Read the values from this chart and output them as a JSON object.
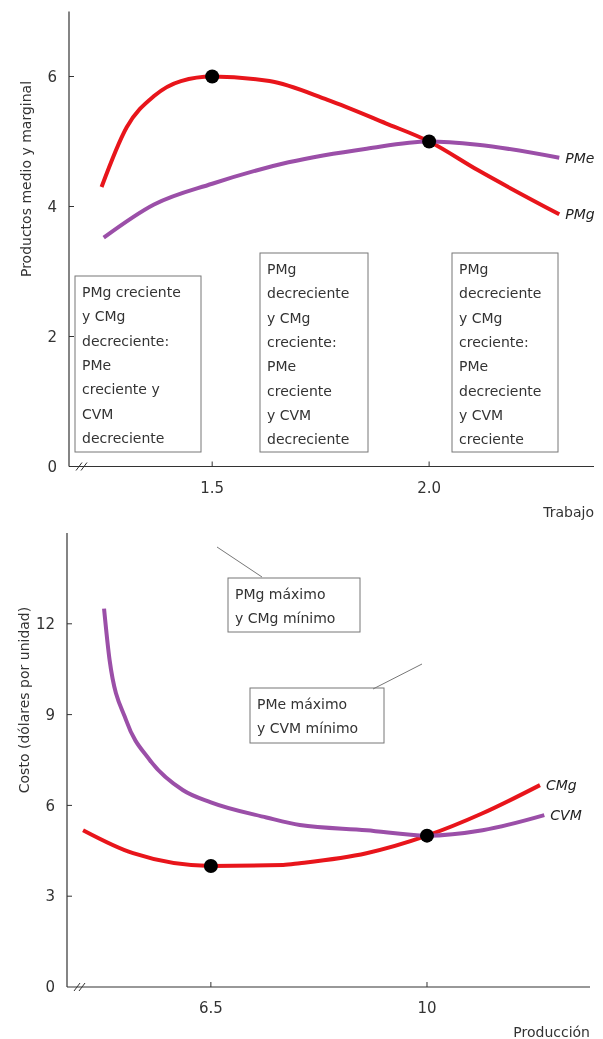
{
  "chart_data": [
    {
      "type": "line",
      "ylabel": "Productos medio y marginal",
      "xlabel": "Trabajo",
      "xlim": [
        1.17,
        2.38
      ],
      "xticks": [
        1.5,
        {
          "value": 2,
          "label": "2.0"
        }
      ],
      "ylim": [
        0,
        7
      ],
      "yticks": [
        0,
        2,
        4,
        6
      ],
      "grid": false,
      "line_style": "solid",
      "series": [
        {
          "name": "PMg",
          "color": "#e8151b",
          "x": [
            1.245,
            1.303,
            1.366,
            1.428,
            1.5,
            1.632,
            1.766,
            1.9,
            2.0,
            2.112,
            2.3
          ],
          "values": [
            4.3,
            5.22,
            5.7,
            5.93,
            6.0,
            5.93,
            5.64,
            5.28,
            5.0,
            4.56,
            3.88
          ]
        },
        {
          "name": "PMe",
          "color": "#9b4fa8",
          "x": [
            1.25,
            1.366,
            1.5,
            1.676,
            1.856,
            2.0,
            2.112,
            2.3
          ],
          "values": [
            3.52,
            4.03,
            4.35,
            4.68,
            4.89,
            5.0,
            4.95,
            4.75
          ]
        },
        {
          "type": "scatter",
          "color": "#000000",
          "marker": "circle",
          "x": [
            1.5,
            2.0
          ],
          "values": [
            6,
            5
          ]
        }
      ],
      "annotations": [
        "PMg creciente\ny CMg\ndecreciente:\nPMe\ncreciente y\nCVM\ndecreciente",
        "PMg\ndecreciente\ny CMg\ncreciente:\nPMe\ncreciente\ny CVM\ndecreciente",
        "PMg\ndecreciente\ny CMg\ncreciente:\nPMe\ndecreciente\ny CVM\ncreciente"
      ]
    },
    {
      "type": "line",
      "ylabel": "Costo (dólares por unidad)",
      "xlabel": "Producción",
      "xlim": [
        4.17,
        12.64
      ],
      "xticks": [
        6.5,
        10
      ],
      "ylim": [
        0,
        15
      ],
      "yticks": [
        0,
        3,
        6,
        9,
        12
      ],
      "grid": false,
      "line_style": "solid",
      "series": [
        {
          "name": "CMg",
          "color": "#e8151b",
          "x": [
            4.43,
            5.24,
            6.5,
            7.67,
            7.94,
            9.02,
            10,
            10.9,
            11.83
          ],
          "values": [
            5.18,
            4.42,
            4.0,
            4.03,
            4.09,
            4.42,
            5.0,
            5.74,
            6.67
          ]
        },
        {
          "name": "CVM",
          "color": "#9b4fa8",
          "x": [
            4.77,
            4.86,
            5.13,
            5.51,
            6.05,
            6.5,
            7.4,
            7.94,
            9.02,
            10,
            10.9,
            11.9
          ],
          "values": [
            12.5,
            10.8,
            8.8,
            7.5,
            6.5,
            6.1,
            5.6,
            5.35,
            5.18,
            5.0,
            5.18,
            5.68
          ]
        },
        {
          "type": "scatter",
          "color": "#000000",
          "marker": "circle",
          "x": [
            6.5,
            10
          ],
          "values": [
            4,
            5
          ]
        }
      ],
      "annotations": [
        "PMg máximo\ny CMg mínimo",
        "PMe máximo\ny CVM mínimo"
      ]
    }
  ]
}
